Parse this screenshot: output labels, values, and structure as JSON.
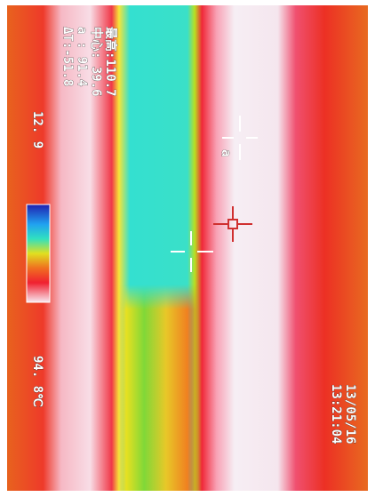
{
  "overlay": {
    "max_label": "最高:110.7",
    "center_label": "中心: 39.6",
    "point_label": "a  : 91.4",
    "delta_label": "ΔT:-51.8",
    "scale_min": "12. 9",
    "scale_max": "94. 8℃",
    "date": "13/05/16",
    "time": "13:21:04",
    "marker_label": "a"
  }
}
